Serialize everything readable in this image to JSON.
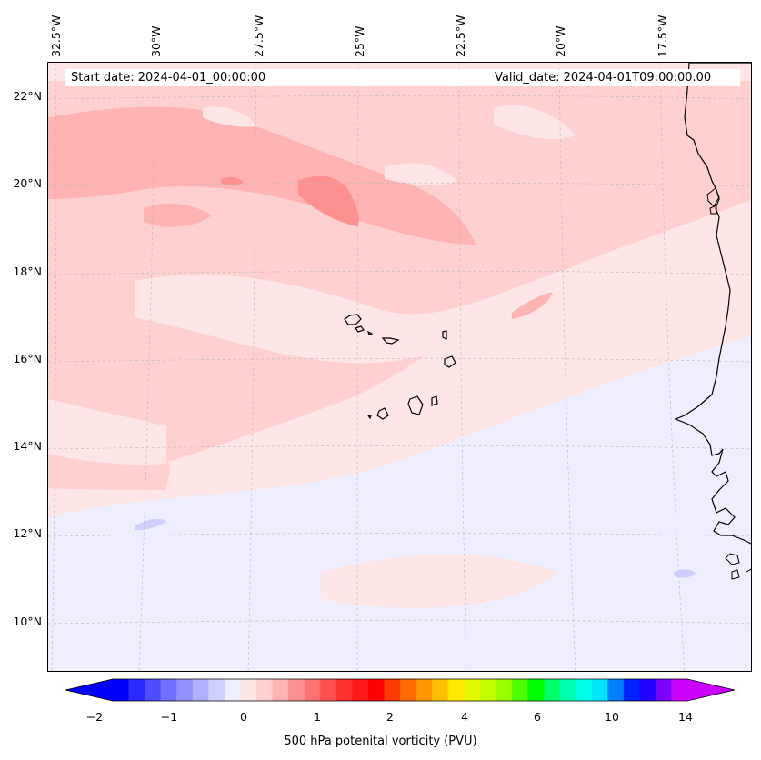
{
  "map": {
    "banner_start": "Start date: 2024-04-01_00:00:00",
    "banner_valid": "Valid_date: 2024-04-01T09:00:00.00",
    "lon_labels": [
      "32.5°W",
      "30°W",
      "27.5°W",
      "25°W",
      "22.5°W",
      "20°W",
      "17.5°W"
    ],
    "lat_labels": [
      "22°N",
      "20°N",
      "18°N",
      "16°N",
      "14°N",
      "12°N",
      "10°N"
    ],
    "colors": {
      "background": "#ffe6e6",
      "level_pos_1": "#ffd0d0",
      "level_pos_2": "#ffb3b3",
      "level_pos_3": "#ff9090",
      "level_neg": "#eeeeff",
      "level_neg_2": "#d0d0ff",
      "coast": "#000000"
    }
  },
  "colorbar": {
    "label": "500 hPa potenital vorticity (PVU)",
    "tick_labels": [
      "−2",
      "−1",
      "0",
      "1",
      "2",
      "4",
      "6",
      "10",
      "14"
    ],
    "colors": [
      "#0000ff",
      "#2a2aff",
      "#4d4dff",
      "#7070ff",
      "#9090ff",
      "#b0b0ff",
      "#d0d0ff",
      "#eeeeff",
      "#ffe6e6",
      "#ffd0d0",
      "#ffb3b3",
      "#ff9090",
      "#ff7070",
      "#ff5050",
      "#ff3030",
      "#ff1a1a",
      "#ff0000",
      "#ff3a00",
      "#ff6a00",
      "#ff9500",
      "#ffbf00",
      "#ffea00",
      "#e6f500",
      "#c4ff00",
      "#99ff00",
      "#4dff00",
      "#00ff00",
      "#00ff66",
      "#00ffb3",
      "#00ffe6",
      "#00e6ff",
      "#0080ff",
      "#0022ff",
      "#2200ff",
      "#7a00ff",
      "#cc00ff"
    ],
    "under_color": "#0000ff",
    "over_color": "#cc00ff"
  }
}
